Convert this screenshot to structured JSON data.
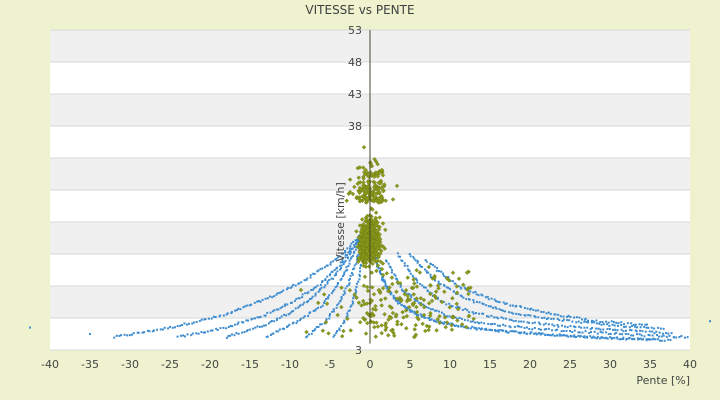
{
  "chart_data": {
    "type": "scatter",
    "title": "VITESSE vs PENTE",
    "xlabel": "Pente [%]",
    "ylabel": "Vitesse [km/h]",
    "xlim": [
      -40,
      40
    ],
    "ylim": [
      3,
      53
    ],
    "x_ticks": [
      -40,
      -35,
      -30,
      -25,
      -20,
      -15,
      -10,
      -5,
      0,
      5,
      10,
      15,
      20,
      25,
      30,
      35,
      40
    ],
    "y_ticks": [
      3,
      8,
      13,
      18,
      23,
      28,
      33,
      38,
      43,
      48,
      53
    ],
    "x_tick_labels": [
      "-40",
      "-35",
      "-30",
      "-25",
      "-20",
      "-15",
      "-10",
      "-5",
      "0",
      "5",
      "10",
      "15",
      "20",
      "25",
      "30",
      "35",
      "40"
    ],
    "y_tick_labels": [
      "3",
      "",
      "",
      "",
      "",
      "",
      "",
      "38",
      "43",
      "48",
      "53"
    ],
    "grid": "horizontal bands",
    "legend": "none",
    "colors": {
      "page_background": "#eef2cf",
      "plot_background": "#ffffff",
      "band": "#f0f0f0",
      "grid": "#d9d9d9",
      "series_blue": "#3d8cd0",
      "series_olive": "#8a9a1a",
      "axis": "#4a4a2a"
    },
    "series": [
      {
        "description": "blue curved-band points",
        "color": "#3d8cd0",
        "curves": [
          {
            "x": [
              -32,
              -25,
              -18,
              -12,
              -8,
              -5,
              -3,
              -1.5,
              -0.5
            ],
            "y": [
              5,
              6.5,
              8.5,
              11.5,
              14,
              16.5,
              18.5,
              20.5,
              22
            ]
          },
          {
            "x": [
              -24,
              -18,
              -13,
              -9,
              -6,
              -4,
              -2.5,
              -1.2,
              -0.4
            ],
            "y": [
              5,
              6.5,
              8.5,
              11,
              13.5,
              16,
              18.5,
              20.5,
              22
            ]
          },
          {
            "x": [
              -18,
              -13,
              -9,
              -6.5,
              -4.5,
              -3,
              -2,
              -1
            ],
            "y": [
              5,
              7,
              9.5,
              12,
              14.5,
              17,
              19,
              21
            ]
          },
          {
            "x": [
              -13,
              -9,
              -6,
              -4.5,
              -3.2,
              -2.2,
              -1.3
            ],
            "y": [
              5,
              7.5,
              10,
              12.5,
              15,
              17.5,
              20
            ]
          },
          {
            "x": [
              -8,
              -5.5,
              -3.8,
              -2.6,
              -1.8,
              -1.1
            ],
            "y": [
              5,
              7.5,
              10.5,
              13.5,
              16.5,
              19.5
            ]
          },
          {
            "x": [
              -4.5,
              -3,
              -2,
              -1.3,
              -0.8
            ],
            "y": [
              5,
              8,
              11,
              14.5,
              18
            ]
          },
          {
            "x": [
              0.5,
              1.5,
              3,
              5,
              8,
              12,
              18,
              25,
              32,
              38
            ],
            "y": [
              18,
              14,
              11,
              9,
              7.5,
              6.5,
              5.8,
              5.2,
              4.8,
              4.5
            ]
          },
          {
            "x": [
              1,
              2.5,
              4.5,
              7,
              11,
              16,
              22,
              29,
              36
            ],
            "y": [
              16,
              12,
              9.5,
              8,
              6.8,
              6,
              5.4,
              4.9,
              4.6
            ]
          },
          {
            "x": [
              2,
              4,
              6.5,
              10,
              14,
              20,
              27,
              34,
              40
            ],
            "y": [
              17,
              12.5,
              10,
              8.2,
              7.2,
              6.4,
              5.8,
              5.3,
              5
            ]
          },
          {
            "x": [
              3.5,
              6,
              9,
              13,
              18,
              24,
              31,
              38
            ],
            "y": [
              18,
              13.5,
              10.5,
              8.8,
              7.6,
              6.7,
              6.1,
              5.6
            ]
          },
          {
            "x": [
              5,
              8,
              12,
              17,
              23,
              30,
              37
            ],
            "y": [
              18,
              14,
              11,
              9,
              7.8,
              6.9,
              6.2
            ]
          },
          {
            "x": [
              7,
              11,
              16,
              22,
              28,
              35
            ],
            "y": [
              17,
              13,
              10.5,
              8.8,
              7.6,
              6.8
            ]
          }
        ]
      },
      {
        "description": "olive diamond points",
        "color": "#8a9a1a",
        "center": [
          0,
          20
        ],
        "approx_count": 850
      }
    ]
  }
}
